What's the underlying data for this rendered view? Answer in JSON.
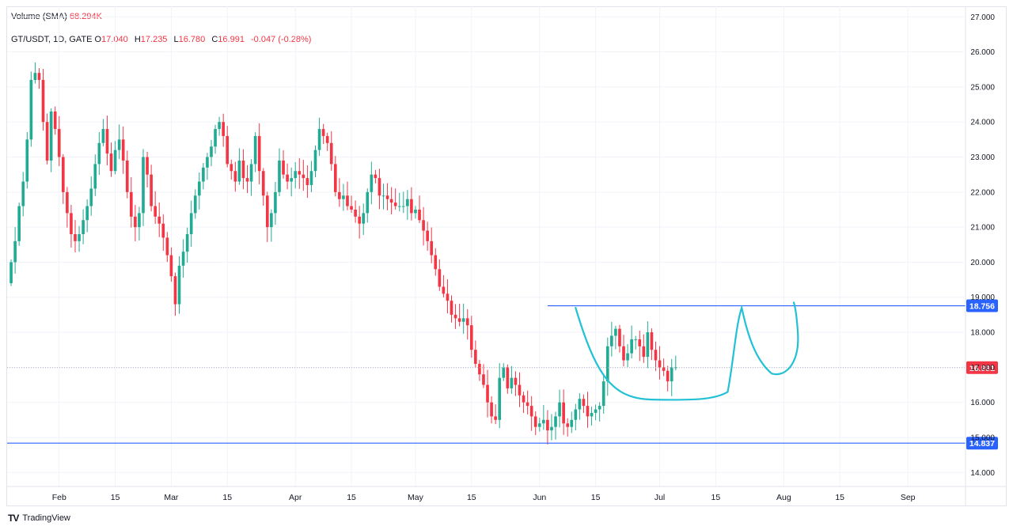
{
  "legend": {
    "volume_label": "Volume (SMA)",
    "volume_value": "68.294K",
    "symbol": "GT/USDT, 1D, GATE",
    "open_key": "O",
    "open": "17.040",
    "high_key": "H",
    "high": "17.235",
    "low_key": "L",
    "low": "16.780",
    "close_key": "C",
    "close": "16.991",
    "change": "-0.047 (-0.28%)"
  },
  "brand": {
    "logo": "TV",
    "name": "TradingView"
  },
  "colors": {
    "up": "#22ab94",
    "down": "#f23645",
    "line": "#2962ff",
    "drawing": "#22c1d6",
    "grid": "#f0f3fa"
  },
  "chart_data": {
    "type": "candlestick",
    "title": "GT/USDT, 1D, GATE",
    "ylim": [
      13.6,
      27.3
    ],
    "y_ticks": [
      "14.000",
      "15.000",
      "16.000",
      "17.000",
      "18.000",
      "19.000",
      "20.000",
      "21.000",
      "22.000",
      "23.000",
      "24.000",
      "25.000",
      "26.000",
      "27.000"
    ],
    "x_ticks": [
      {
        "label": "Feb",
        "day": 0
      },
      {
        "label": "15",
        "day": 14
      },
      {
        "label": "Mar",
        "day": 28
      },
      {
        "label": "15",
        "day": 42
      },
      {
        "label": "Apr",
        "day": 59
      },
      {
        "label": "15",
        "day": 73
      },
      {
        "label": "May",
        "day": 89
      },
      {
        "label": "15",
        "day": 103
      },
      {
        "label": "Jun",
        "day": 120
      },
      {
        "label": "15",
        "day": 134
      },
      {
        "label": "Jul",
        "day": 150
      },
      {
        "label": "15",
        "day": 164
      },
      {
        "label": "Aug",
        "day": 181
      },
      {
        "label": "15",
        "day": 195
      },
      {
        "label": "Sep",
        "day": 212
      }
    ],
    "x_range_days": [
      -13,
      226
    ],
    "horizontal_lines": [
      {
        "name": "resistance",
        "value": 18.756,
        "label": "18.756",
        "start_day": 122
      },
      {
        "name": "support",
        "value": 14.837,
        "label": "14.837",
        "start_day": -13
      }
    ],
    "last_price": {
      "value": 16.991,
      "label": "16.991"
    },
    "closes": [
      20.0,
      20.6,
      21.6,
      22.3,
      23.5,
      25.2,
      25.4,
      25.2,
      24.0,
      22.9,
      24.3,
      23.8,
      23.0,
      22.0,
      21.4,
      20.8,
      20.6,
      20.8,
      21.2,
      21.6,
      22.1,
      22.8,
      23.4,
      23.8,
      23.1,
      22.6,
      23.2,
      23.5,
      22.9,
      22.0,
      21.3,
      21.0,
      21.4,
      23.0,
      22.5,
      21.6,
      21.3,
      21.1,
      20.7,
      20.2,
      19.6,
      18.8,
      19.9,
      20.3,
      20.8,
      21.4,
      21.9,
      22.3,
      22.7,
      23.0,
      23.3,
      23.8,
      24.0,
      23.6,
      22.8,
      22.6,
      22.3,
      22.9,
      22.4,
      22.3,
      22.8,
      23.6,
      22.6,
      21.9,
      21.0,
      21.4,
      22.0,
      22.9,
      22.5,
      22.3,
      22.4,
      22.6,
      22.5,
      22.4,
      22.2,
      22.6,
      23.2,
      23.8,
      23.6,
      23.4,
      22.8,
      22.0,
      21.8,
      21.9,
      21.6,
      21.5,
      21.3,
      21.1,
      21.4,
      22.0,
      22.5,
      22.4,
      21.9,
      21.9,
      21.8,
      21.7,
      21.6,
      21.6,
      21.6,
      21.8,
      21.4,
      21.5,
      21.2,
      20.9,
      20.6,
      20.2,
      19.8,
      19.3,
      19.1,
      18.9,
      18.5,
      18.4,
      18.3,
      18.4,
      18.2,
      17.5,
      17.1,
      16.8,
      16.5,
      16.0,
      15.6,
      15.5,
      16.7,
      17.0,
      16.4,
      16.7,
      16.5,
      16.2,
      16.0,
      15.9,
      15.6,
      15.3,
      15.4,
      15.5,
      15.2,
      15.3,
      15.6,
      16.0,
      15.4,
      15.3,
      15.5,
      15.8,
      16.1,
      15.9,
      15.6,
      15.7,
      15.8,
      15.9,
      16.6,
      17.6,
      17.9,
      18.1,
      17.6,
      17.2,
      17.4,
      17.8,
      17.8,
      17.6,
      17.3,
      18.0,
      17.5,
      17.2,
      17.0,
      16.9,
      16.6,
      17.0,
      17.0
    ]
  }
}
